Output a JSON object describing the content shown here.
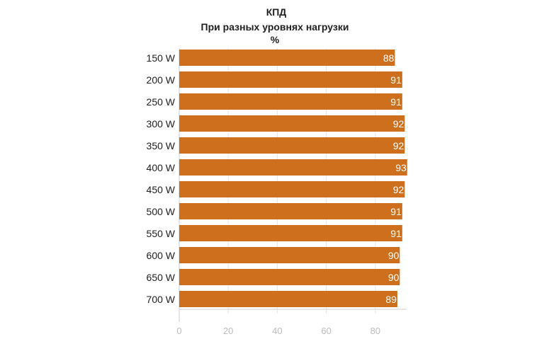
{
  "chart_data": {
    "type": "bar",
    "orientation": "horizontal",
    "title": "КПД",
    "subtitle": "При разных уровнях нагрузки",
    "unit_label": "%",
    "categories": [
      "150 W",
      "200 W",
      "250 W",
      "300 W",
      "350 W",
      "400 W",
      "450 W",
      "500 W",
      "550 W",
      "600 W",
      "650 W",
      "700 W"
    ],
    "values": [
      88,
      91,
      91,
      92,
      92,
      93,
      92,
      91,
      91,
      90,
      90,
      89
    ],
    "xlim": [
      0,
      92
    ],
    "xticks": [
      0,
      20,
      40,
      60,
      80
    ],
    "grid": true,
    "legend": "none",
    "bar_color": "#cd6f1c",
    "value_label_color": "#ffffff",
    "gridline_color": "#e6e6e6",
    "tick_label_color": "#bdbdbd"
  }
}
